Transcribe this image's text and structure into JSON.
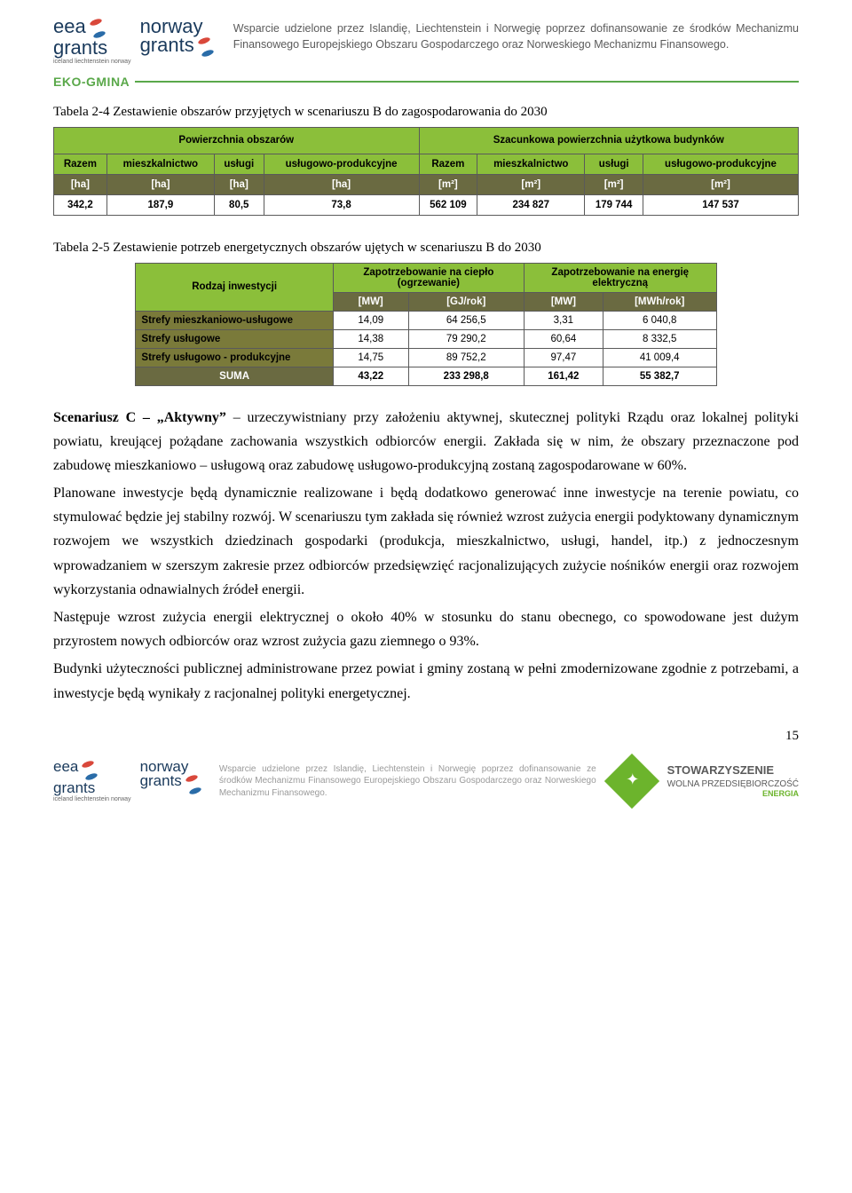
{
  "header": {
    "logo1_line1": "eea",
    "logo1_line2": "grants",
    "logo1_sub": "iceland liechtenstein norway",
    "logo2_line1": "norway",
    "logo2_line2": "grants",
    "funding_text": "Wsparcie udzielone przez Islandię, Liechtenstein i Norwegię poprzez dofinansowanie ze środków Mechanizmu Finansowego Europejskiego Obszaru Gospodarczego oraz Norweskiego Mechanizmu Finansowego.",
    "eko_label": "EKO-GMINA"
  },
  "table1": {
    "caption": "Tabela 2-4 Zestawienie obszarów przyjętych w scenariuszu B do zagospodarowania do 2030",
    "group_left": "Powierzchnia obszarów",
    "group_right": "Szacunkowa powierzchnia użytkowa budynków",
    "cols": [
      "Razem",
      "mieszkalnictwo",
      "usługi",
      "usługowo-produkcyjne",
      "Razem",
      "mieszkalnictwo",
      "usługi",
      "usługowo-produkcyjne"
    ],
    "units": [
      "[ha]",
      "[ha]",
      "[ha]",
      "[ha]",
      "[m²]",
      "[m²]",
      "[m²]",
      "[m²]"
    ],
    "data": [
      "342,2",
      "187,9",
      "80,5",
      "73,8",
      "562 109",
      "234 827",
      "179 744",
      "147 537"
    ],
    "colors": {
      "header_bg": "#8bbf3a",
      "unit_bg": "#6a6a41",
      "unit_fg": "#ffffff",
      "border": "#5a5a5a"
    }
  },
  "table2": {
    "caption": "Tabela 2-5 Zestawienie potrzeb energetycznych obszarów ujętych w scenariuszu B do 2030",
    "row_header": "Rodzaj inwestycji",
    "group1": "Zapotrzebowanie na ciepło (ogrzewanie)",
    "group2": "Zapotrzebowanie na energię elektryczną",
    "units": [
      "[MW]",
      "[GJ/rok]",
      "[MW]",
      "[MWh/rok]"
    ],
    "rows": [
      {
        "label": "Strefy mieszkaniowo-usługowe",
        "v": [
          "14,09",
          "64 256,5",
          "3,31",
          "6 040,8"
        ]
      },
      {
        "label": "Strefy usługowe",
        "v": [
          "14,38",
          "79 290,2",
          "60,64",
          "8 332,5"
        ]
      },
      {
        "label": "Strefy usługowo - produkcyjne",
        "v": [
          "14,75",
          "89 752,2",
          "97,47",
          "41 009,4"
        ]
      }
    ],
    "sum": {
      "label": "SUMA",
      "v": [
        "43,22",
        "233 298,8",
        "161,42",
        "55 382,7"
      ]
    },
    "colors": {
      "header_bg": "#8bbf3a",
      "unit_bg": "#6a6a41",
      "olive_bg": "#7a7a3a"
    }
  },
  "body": {
    "p1": "Scenariusz C – „Aktywny” – urzeczywistniany przy założeniu aktywnej, skutecznej polityki Rządu oraz lokalnej polityki powiatu, kreującej pożądane zachowania wszystkich odbiorców energii. Zakłada się w nim, że obszary przeznaczone pod zabudowę mieszkaniowo – usługową oraz zabudowę usługowo-produkcyjną zostaną zagospodarowane w 60%.",
    "p1_bold": "Scenariusz C – „Aktywny”",
    "p2": "Planowane inwestycje będą dynamicznie realizowane i będą dodatkowo generować inne inwestycje na terenie powiatu, co stymulować będzie jej stabilny rozwój. W scenariuszu tym zakłada się również wzrost zużycia energii podyktowany dynamicznym rozwojem we wszystkich dziedzinach gospodarki (produkcja, mieszkalnictwo, usługi, handel, itp.) z jednoczesnym wprowadzaniem w szerszym zakresie przez odbiorców przedsięwzięć racjonalizujących zużycie nośników energii oraz rozwojem wykorzystania odnawialnych źródeł energii.",
    "p3": "Następuje wzrost zużycia energii elektrycznej o około 40% w stosunku do stanu obecnego, co spowodowane jest dużym przyrostem nowych odbiorców oraz wzrost zużycia gazu ziemnego o 93%.",
    "p4": "Budynki użyteczności publicznej administrowane przez powiat i gminy zostaną w pełni zmodernizowane zgodnie z potrzebami, a inwestycje będą wynikały z racjonalnej polityki energetycznej."
  },
  "page_number": "15",
  "footer": {
    "text": "Wsparcie udzielone przez Islandię, Liechtenstein i Norwegię poprzez dofinansowanie ze środków Mechanizmu Finansowego Europejskiego Obszaru Gospodarczego oraz Norweskiego Mechanizmu Finansowego.",
    "stow1": "STOWARZYSZENIE",
    "stow2": "WOLNA PRZEDSIĘBIORCZOŚĆ",
    "stow3": "ENERGIA"
  }
}
